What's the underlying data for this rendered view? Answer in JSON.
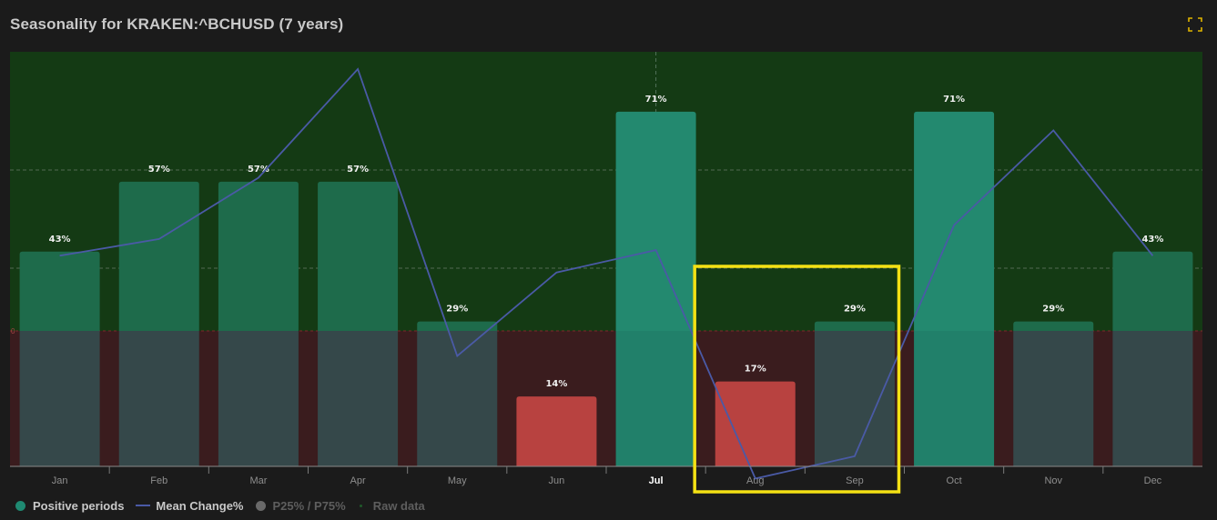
{
  "header": {
    "title": "Seasonality for KRAKEN:^BCHUSD (7 years)"
  },
  "colors": {
    "positive_bar": "#1e6b4b",
    "positive_bar_strong": "#23896f",
    "negative_bar": "#b84240",
    "bar_below_zero": "#35484a",
    "positive_zone": "#143a14",
    "negative_zone": "#3a1c1e",
    "mean_line": "#4a5aa6",
    "highlight_box": "#f4e114",
    "background": "#1b1b1b"
  },
  "chart_data": {
    "type": "bar",
    "categories": [
      "Jan",
      "Feb",
      "Mar",
      "Apr",
      "May",
      "Jun",
      "Jul",
      "Aug",
      "Sep",
      "Oct",
      "Nov",
      "Dec"
    ],
    "highlighted_category": "Jul",
    "zero_axis_label": "0",
    "series": [
      {
        "name": "Positive periods",
        "values": [
          43,
          57,
          57,
          57,
          29,
          14,
          71,
          17,
          29,
          71,
          29,
          43
        ],
        "labels": [
          "43%",
          "57%",
          "57%",
          "57%",
          "29%",
          "14%",
          "71%",
          "17%",
          "29%",
          "71%",
          "29%",
          "43%"
        ]
      },
      {
        "name": "Mean Change%",
        "values": [
          27,
          33,
          55,
          94,
          -9,
          21,
          29,
          -53,
          -45,
          38,
          72,
          27
        ]
      }
    ],
    "bar_ylim": [
      0,
      83
    ],
    "mean_ylim": [
      -60,
      100
    ],
    "grid": true,
    "legend_position": "bottom-left",
    "highlight_box_categories": [
      "Aug",
      "Sep"
    ]
  },
  "legend": {
    "items": [
      {
        "label": "Positive periods",
        "kind": "dot",
        "color": "#1f8a72"
      },
      {
        "label": "Mean Change%",
        "kind": "line",
        "color": "#4a5aa6"
      },
      {
        "label": "P25% / P75%",
        "kind": "dot",
        "color": "#6a6a6a"
      },
      {
        "label": "Raw data",
        "kind": "small-dot",
        "color": "#1f5a2a"
      }
    ]
  }
}
